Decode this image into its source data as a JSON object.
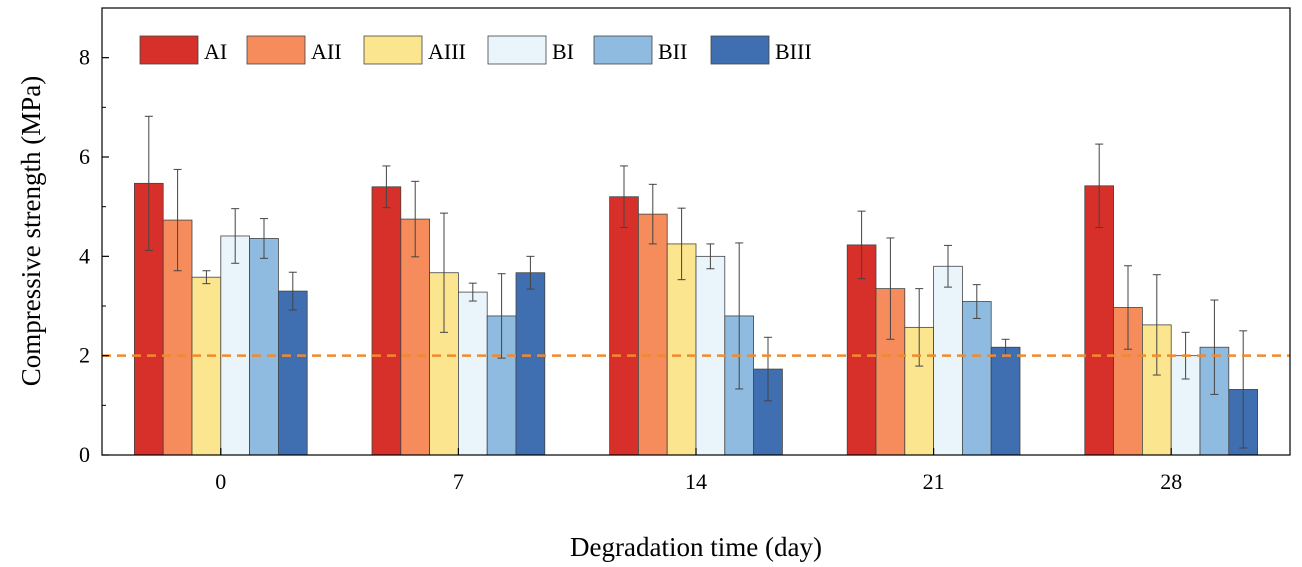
{
  "chart_data": {
    "type": "bar",
    "xlabel": "Degradation time (day)",
    "ylabel": "Compressive strength (MPa)",
    "ylim": [
      0,
      9
    ],
    "yticks": [
      0,
      2,
      4,
      6,
      8
    ],
    "categories": [
      "0",
      "7",
      "14",
      "21",
      "28"
    ],
    "reference_line": {
      "y": 2,
      "style": "dashed",
      "color": "#f08a2c"
    },
    "legend": {
      "placement": "top-left",
      "columns": 6
    },
    "series": [
      {
        "name": "AI",
        "color": "#d7302a",
        "values": [
          5.47,
          5.4,
          5.2,
          4.23,
          5.42
        ],
        "errors": [
          1.35,
          0.42,
          0.62,
          0.68,
          0.84
        ]
      },
      {
        "name": "AII",
        "color": "#f68b5b",
        "values": [
          4.73,
          4.75,
          4.85,
          3.35,
          2.97
        ],
        "errors": [
          1.02,
          0.76,
          0.6,
          1.02,
          0.84
        ]
      },
      {
        "name": "AIII",
        "color": "#fce58f",
        "values": [
          3.58,
          3.67,
          4.25,
          2.57,
          2.62
        ],
        "errors": [
          0.13,
          1.2,
          0.72,
          0.78,
          1.01
        ]
      },
      {
        "name": "BI",
        "color": "#e9f4fb",
        "values": [
          4.41,
          3.28,
          4.0,
          3.8,
          2.0
        ],
        "errors": [
          0.55,
          0.18,
          0.25,
          0.42,
          0.47
        ]
      },
      {
        "name": "BII",
        "color": "#8fbbe0",
        "values": [
          4.36,
          2.8,
          2.8,
          3.09,
          2.17
        ],
        "errors": [
          0.4,
          0.85,
          1.47,
          0.34,
          0.95
        ]
      },
      {
        "name": "BIII",
        "color": "#3f6fb0",
        "values": [
          3.3,
          3.67,
          1.73,
          2.17,
          1.32
        ],
        "errors": [
          0.38,
          0.33,
          0.64,
          0.16,
          1.18
        ]
      }
    ]
  }
}
